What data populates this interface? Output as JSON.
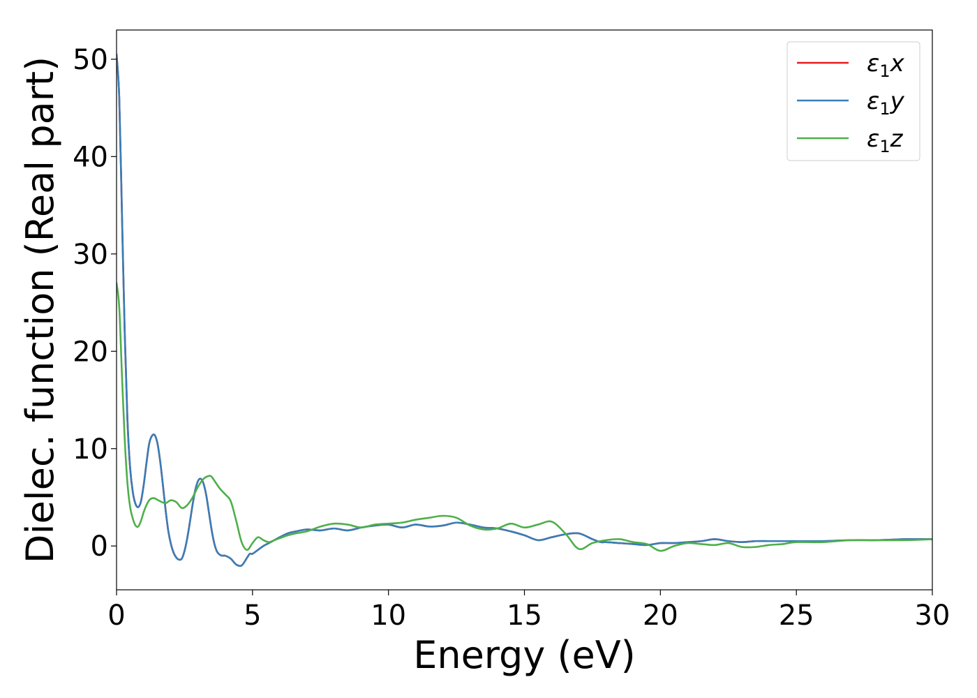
{
  "chart_data": {
    "type": "line",
    "title": "",
    "xlabel": "Energy (eV)",
    "ylabel": "Dielec. function (Real part)",
    "xlim": [
      0,
      30
    ],
    "ylim": [
      -4.5,
      53
    ],
    "xticks": [
      0,
      5,
      10,
      15,
      20,
      25,
      30
    ],
    "yticks": [
      0,
      10,
      20,
      30,
      40,
      50
    ],
    "grid": false,
    "legend_position": "top-right",
    "series": [
      {
        "name": "ε1x",
        "legend_symbol": "ε",
        "legend_subscript": "1",
        "legend_component": "x",
        "color": "#e41a1c",
        "x": [
          0,
          0.1,
          0.2,
          0.3,
          0.4,
          0.5,
          0.6,
          0.7,
          0.8,
          0.9,
          1.0,
          1.1,
          1.2,
          1.3,
          1.4,
          1.5,
          1.6,
          1.7,
          1.8,
          1.9,
          2.0,
          2.1,
          2.2,
          2.3,
          2.4,
          2.5,
          2.6,
          2.7,
          2.8,
          2.9,
          3.0,
          3.1,
          3.2,
          3.3,
          3.4,
          3.5,
          3.6,
          3.7,
          3.8,
          3.9,
          4.0,
          4.2,
          4.4,
          4.6,
          4.8,
          4.9,
          5.0,
          5.2,
          5.4,
          5.6,
          5.8,
          6.0,
          6.3,
          6.6,
          7.0,
          7.5,
          8.0,
          8.5,
          9.0,
          9.5,
          10.0,
          10.5,
          11.0,
          11.5,
          12.0,
          12.5,
          13.0,
          13.5,
          14.0,
          14.5,
          15.0,
          15.5,
          16.0,
          16.5,
          17.0,
          17.5,
          17.8,
          18.0,
          18.5,
          19.0,
          19.5,
          20.0,
          20.5,
          21.0,
          21.5,
          22.0,
          22.5,
          23.0,
          23.5,
          24.0,
          24.5,
          25.0,
          26.0,
          27.0,
          28.0,
          29.0,
          30.0
        ],
        "y": [
          50.5,
          46.0,
          34.0,
          22.0,
          13.0,
          8.0,
          5.5,
          4.3,
          4.0,
          4.6,
          6.3,
          8.5,
          10.5,
          11.3,
          11.4,
          10.6,
          8.8,
          6.4,
          3.8,
          1.6,
          0.2,
          -0.7,
          -1.2,
          -1.4,
          -1.3,
          -0.5,
          0.8,
          2.5,
          4.3,
          5.8,
          6.7,
          6.9,
          6.4,
          5.2,
          3.4,
          1.6,
          0.2,
          -0.6,
          -0.9,
          -1.0,
          -1.0,
          -1.3,
          -1.9,
          -2.0,
          -1.2,
          -0.8,
          -0.8,
          -0.4,
          0.0,
          0.3,
          0.6,
          0.9,
          1.3,
          1.5,
          1.7,
          1.6,
          1.8,
          1.6,
          1.9,
          2.1,
          2.2,
          1.9,
          2.2,
          2.0,
          2.1,
          2.4,
          2.2,
          1.9,
          1.8,
          1.5,
          1.1,
          0.6,
          0.9,
          1.2,
          1.3,
          0.7,
          0.4,
          0.4,
          0.3,
          0.2,
          0.1,
          0.3,
          0.3,
          0.4,
          0.5,
          0.7,
          0.5,
          0.4,
          0.5,
          0.5,
          0.5,
          0.5,
          0.5,
          0.6,
          0.6,
          0.7,
          0.7
        ]
      },
      {
        "name": "ε1y",
        "legend_symbol": "ε",
        "legend_subscript": "1",
        "legend_component": "y",
        "color": "#377eb8",
        "x": [
          0,
          0.1,
          0.2,
          0.3,
          0.4,
          0.5,
          0.6,
          0.7,
          0.8,
          0.9,
          1.0,
          1.1,
          1.2,
          1.3,
          1.4,
          1.5,
          1.6,
          1.7,
          1.8,
          1.9,
          2.0,
          2.1,
          2.2,
          2.3,
          2.4,
          2.5,
          2.6,
          2.7,
          2.8,
          2.9,
          3.0,
          3.1,
          3.2,
          3.3,
          3.4,
          3.5,
          3.6,
          3.7,
          3.8,
          3.9,
          4.0,
          4.2,
          4.4,
          4.6,
          4.8,
          4.9,
          5.0,
          5.2,
          5.4,
          5.6,
          5.8,
          6.0,
          6.3,
          6.6,
          7.0,
          7.5,
          8.0,
          8.5,
          9.0,
          9.5,
          10.0,
          10.5,
          11.0,
          11.5,
          12.0,
          12.5,
          13.0,
          13.5,
          14.0,
          14.5,
          15.0,
          15.5,
          16.0,
          16.5,
          17.0,
          17.5,
          17.8,
          18.0,
          18.5,
          19.0,
          19.5,
          20.0,
          20.5,
          21.0,
          21.5,
          22.0,
          22.5,
          23.0,
          23.5,
          24.0,
          24.5,
          25.0,
          26.0,
          27.0,
          28.0,
          29.0,
          30.0
        ],
        "y": [
          50.5,
          46.0,
          34.0,
          22.0,
          13.0,
          8.0,
          5.5,
          4.3,
          4.0,
          4.6,
          6.3,
          8.5,
          10.5,
          11.3,
          11.4,
          10.6,
          8.8,
          6.4,
          3.8,
          1.6,
          0.2,
          -0.7,
          -1.2,
          -1.4,
          -1.3,
          -0.5,
          0.8,
          2.5,
          4.3,
          5.8,
          6.7,
          6.9,
          6.4,
          5.2,
          3.4,
          1.6,
          0.2,
          -0.6,
          -0.9,
          -1.0,
          -1.0,
          -1.3,
          -1.9,
          -2.0,
          -1.2,
          -0.8,
          -0.8,
          -0.4,
          0.0,
          0.3,
          0.6,
          0.9,
          1.3,
          1.5,
          1.7,
          1.6,
          1.8,
          1.6,
          1.9,
          2.1,
          2.2,
          1.9,
          2.2,
          2.0,
          2.1,
          2.4,
          2.2,
          1.9,
          1.8,
          1.5,
          1.1,
          0.6,
          0.9,
          1.2,
          1.3,
          0.7,
          0.4,
          0.4,
          0.3,
          0.2,
          0.1,
          0.3,
          0.3,
          0.4,
          0.5,
          0.7,
          0.5,
          0.4,
          0.5,
          0.5,
          0.5,
          0.5,
          0.5,
          0.6,
          0.6,
          0.7,
          0.7
        ]
      },
      {
        "name": "ε1z",
        "legend_symbol": "ε",
        "legend_subscript": "1",
        "legend_component": "z",
        "color": "#4daf4a",
        "x": [
          0,
          0.1,
          0.2,
          0.3,
          0.4,
          0.5,
          0.6,
          0.7,
          0.8,
          0.9,
          1.0,
          1.1,
          1.2,
          1.3,
          1.4,
          1.6,
          1.8,
          2.0,
          2.2,
          2.4,
          2.6,
          2.8,
          3.0,
          3.2,
          3.4,
          3.5,
          3.6,
          3.8,
          4.0,
          4.2,
          4.4,
          4.6,
          4.8,
          5.0,
          5.2,
          5.4,
          5.6,
          5.8,
          6.0,
          6.3,
          6.6,
          7.0,
          7.5,
          8.0,
          8.5,
          9.0,
          9.5,
          10.0,
          10.5,
          11.0,
          11.5,
          12.0,
          12.5,
          13.0,
          13.5,
          14.0,
          14.5,
          15.0,
          15.5,
          16.0,
          16.5,
          17.0,
          17.5,
          18.0,
          18.5,
          19.0,
          19.5,
          20.0,
          20.5,
          21.0,
          21.5,
          22.0,
          22.5,
          23.0,
          23.5,
          24.0,
          24.5,
          25.0,
          26.0,
          27.0,
          28.0,
          29.0,
          30.0
        ],
        "y": [
          27.0,
          24.5,
          17.5,
          11.0,
          6.5,
          4.0,
          2.8,
          2.1,
          2.0,
          2.6,
          3.5,
          4.2,
          4.7,
          4.9,
          4.9,
          4.6,
          4.4,
          4.7,
          4.5,
          3.9,
          4.2,
          5.0,
          6.1,
          6.9,
          7.2,
          7.1,
          6.7,
          5.9,
          5.3,
          4.6,
          2.6,
          0.4,
          -0.4,
          0.3,
          0.9,
          0.6,
          0.4,
          0.6,
          0.8,
          1.1,
          1.3,
          1.5,
          2.0,
          2.3,
          2.2,
          1.9,
          2.2,
          2.3,
          2.4,
          2.7,
          2.9,
          3.1,
          2.9,
          2.1,
          1.7,
          1.8,
          2.3,
          1.9,
          2.2,
          2.5,
          1.3,
          -0.3,
          0.3,
          0.6,
          0.7,
          0.4,
          0.2,
          -0.5,
          0.0,
          0.3,
          0.2,
          0.1,
          0.3,
          -0.1,
          -0.1,
          0.1,
          0.2,
          0.4,
          0.4,
          0.6,
          0.6,
          0.6,
          0.7
        ]
      }
    ]
  }
}
